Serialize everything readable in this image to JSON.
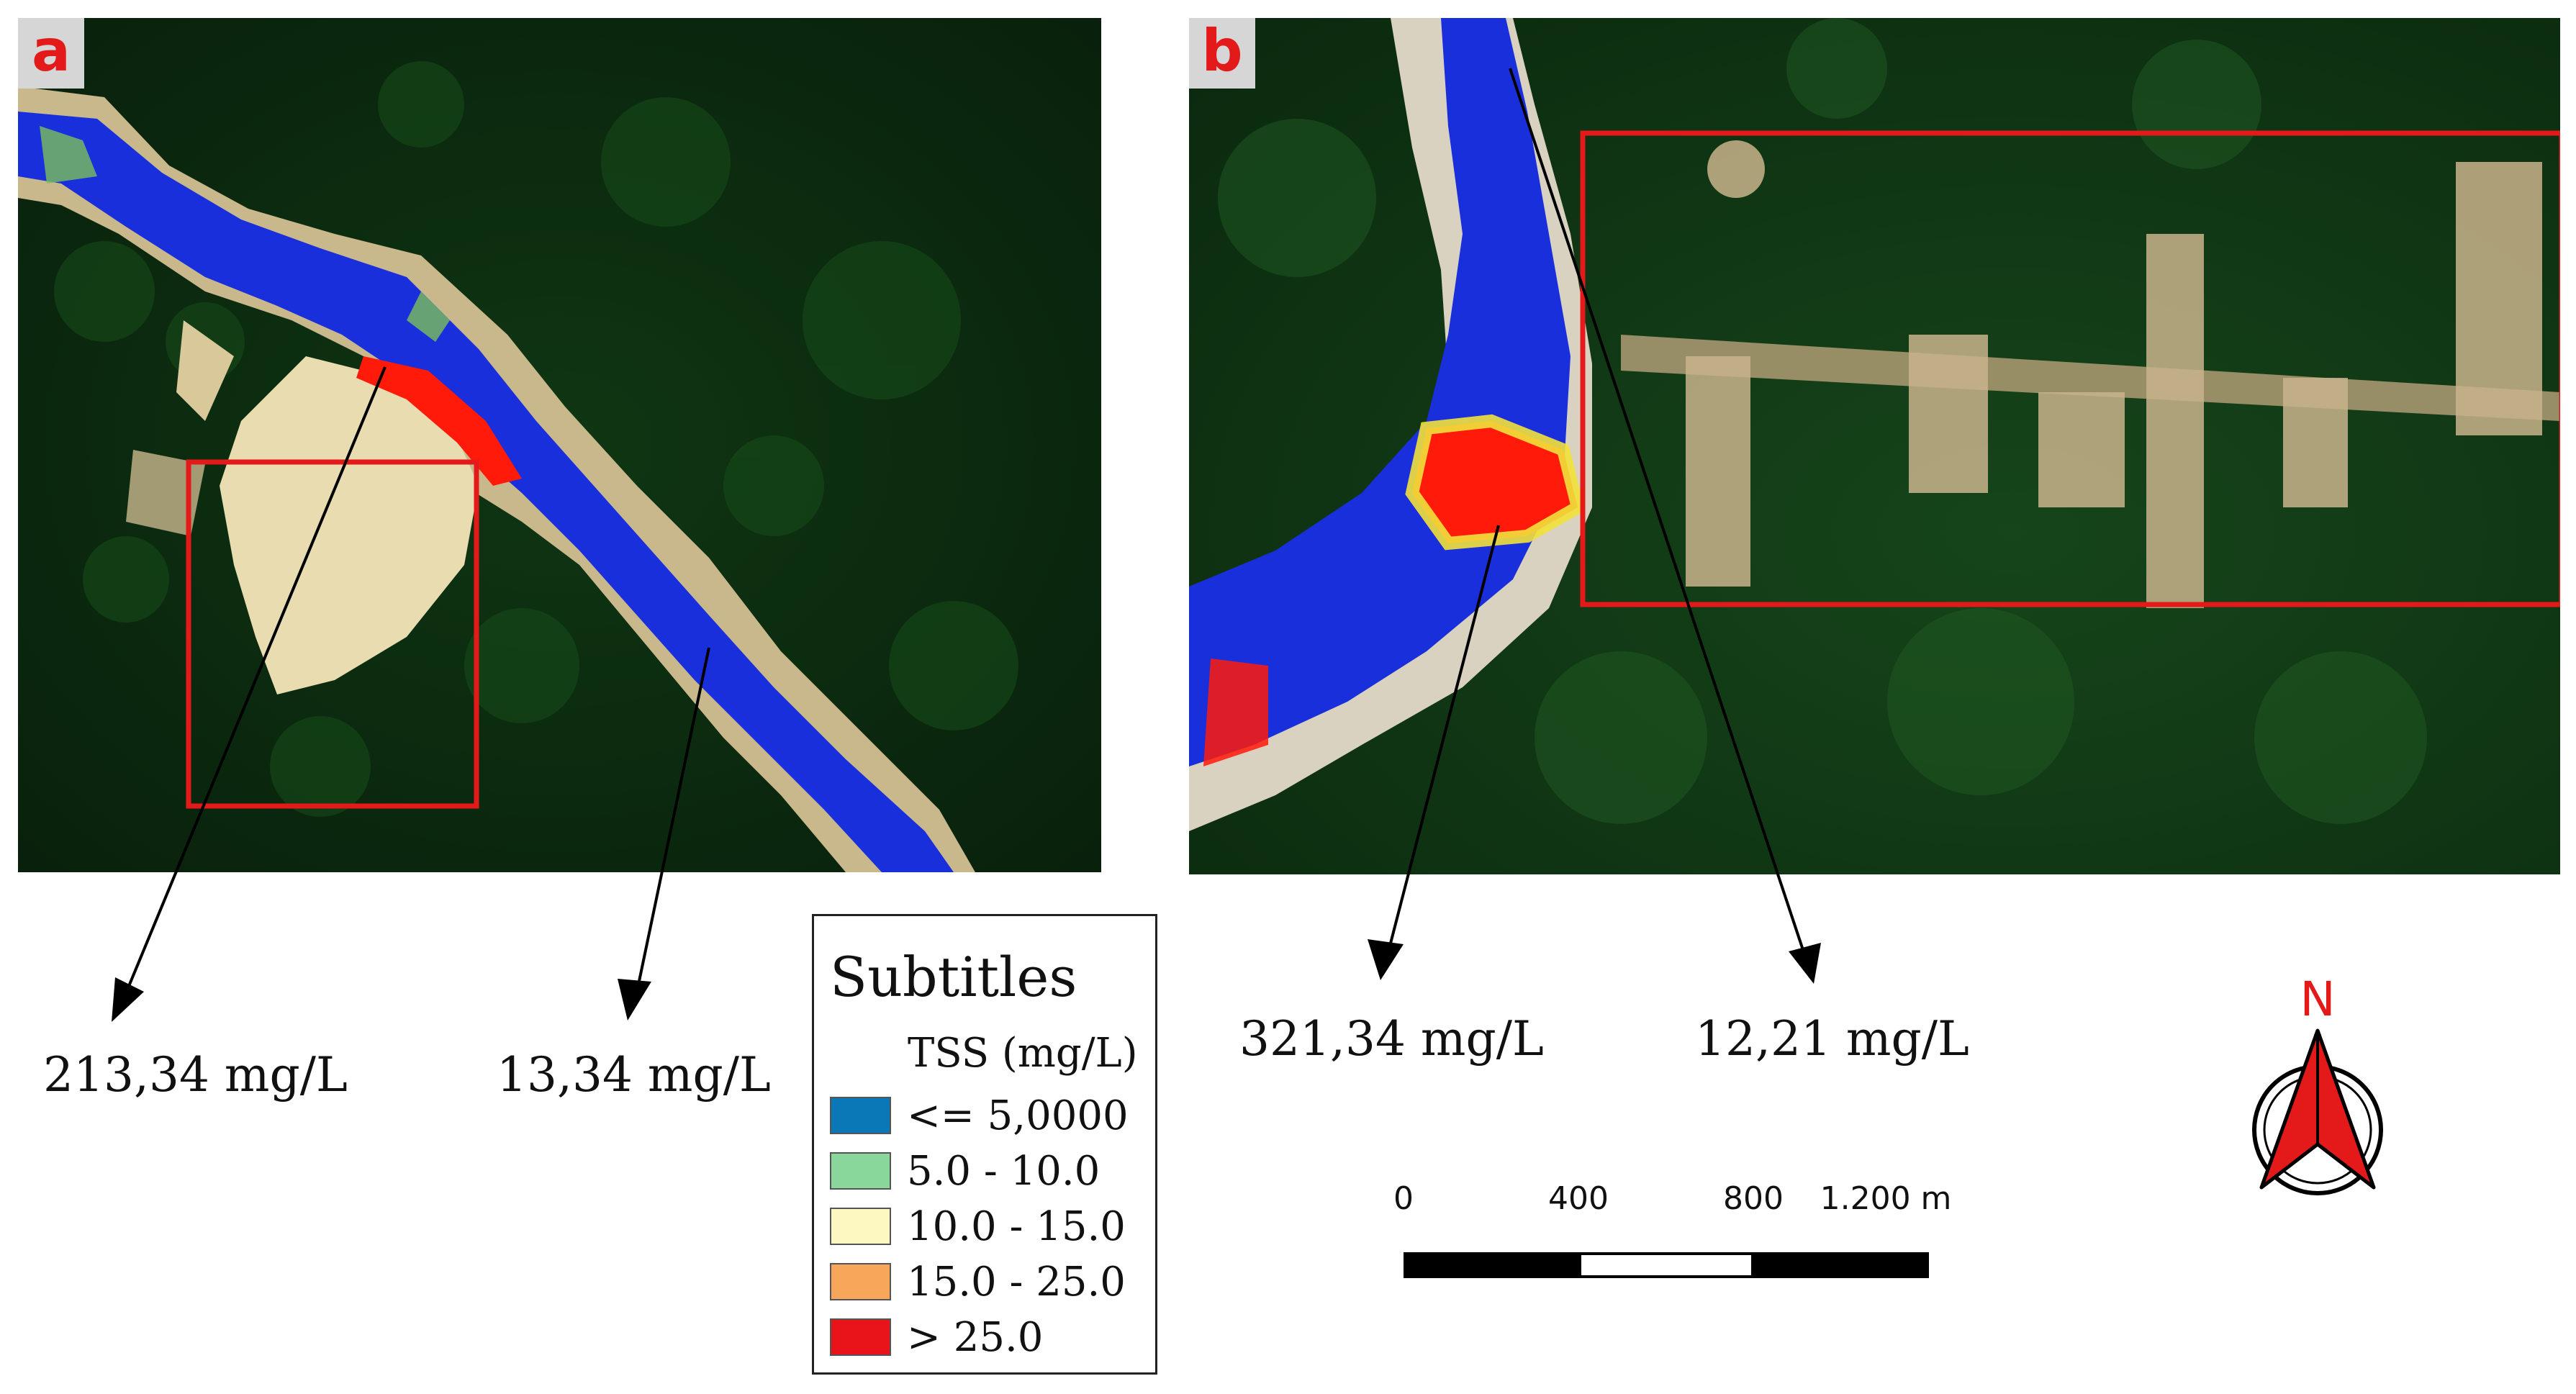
{
  "panels": [
    {
      "label": "a"
    },
    {
      "label": "b"
    }
  ],
  "callouts": {
    "a_left": "213,34 mg/L",
    "a_right": "13,34 mg/L",
    "b_left": "321,34 mg/L",
    "b_right": "12,21 mg/L"
  },
  "legend": {
    "title": "Subtitles",
    "subtitle": "TSS (mg/L)",
    "items": [
      {
        "label": "<= 5,0000",
        "color": "#0a78b6"
      },
      {
        "label": "5.0 - 10.0",
        "color": "#8ad79c"
      },
      {
        "label": "10.0 - 15.0",
        "color": "#fdf7c2"
      },
      {
        "label": "15.0 - 25.0",
        "color": "#f7a65a"
      },
      {
        "label": "> 25.0",
        "color": "#e8141a"
      }
    ]
  },
  "scale_bar": {
    "labels": [
      "0",
      "400",
      "800",
      "1.200 m"
    ]
  },
  "north_arrow": {
    "letter": "N"
  },
  "colors": {
    "forest": "#0d2e10",
    "river_blue": "#1a2fdc",
    "high_tss": "#ff1a0a",
    "box_red": "#e41a1a"
  }
}
